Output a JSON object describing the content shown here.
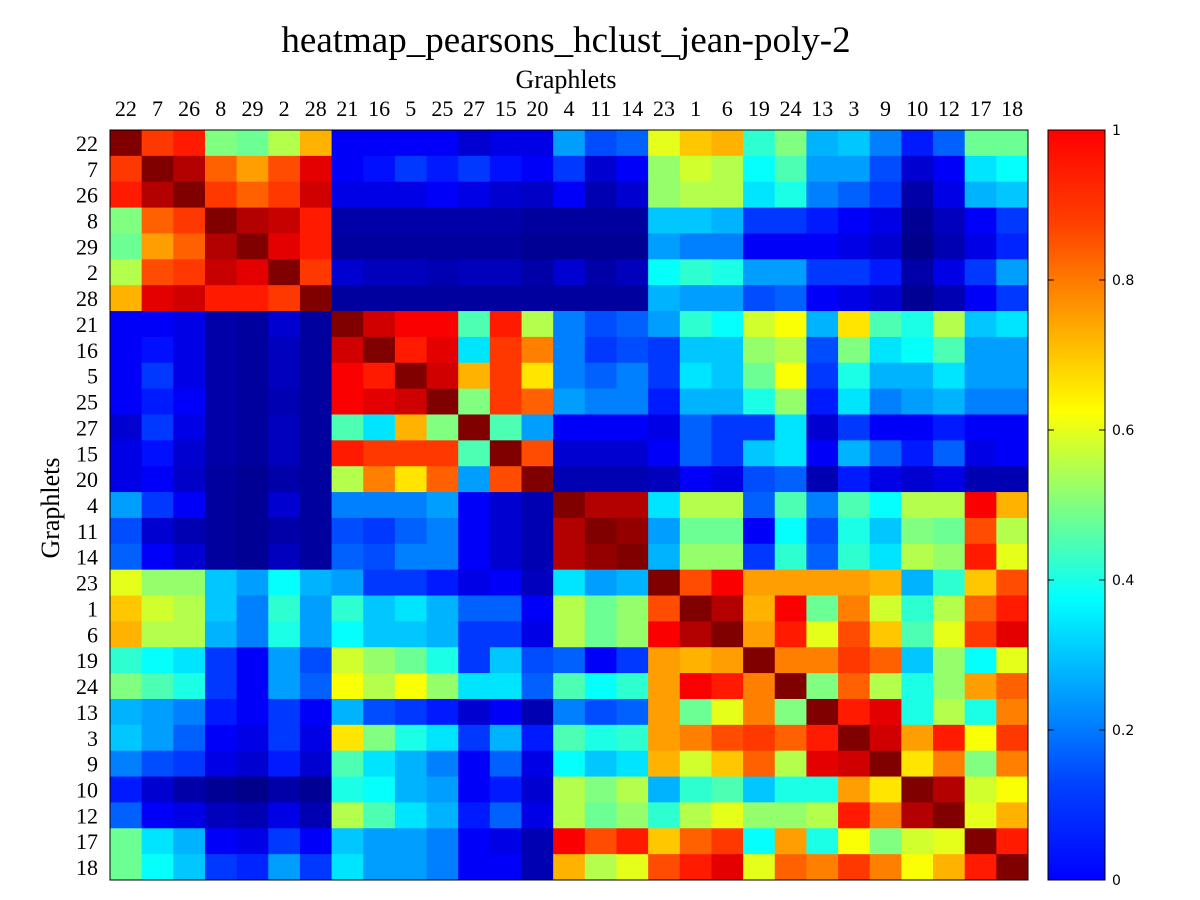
{
  "chart_data": {
    "type": "heatmap",
    "title": "heatmap_pearsons_hclust_jean-poly-2",
    "xlabel": "Graphlets",
    "ylabel": "Graphlets",
    "labels": [
      "22",
      "7",
      "26",
      "8",
      "29",
      "2",
      "28",
      "21",
      "16",
      "5",
      "25",
      "27",
      "15",
      "20",
      "4",
      "11",
      "14",
      "23",
      "1",
      "6",
      "19",
      "24",
      "13",
      "3",
      "9",
      "10",
      "12",
      "17",
      "18"
    ],
    "colorscale": "jet",
    "zlim": [
      0,
      1
    ],
    "colorbar_ticks": [
      "0",
      "0.2",
      "0.4",
      "0.6",
      "0.8",
      "1"
    ],
    "colorbar_tick_values": [
      0,
      0.2,
      0.4,
      0.6,
      0.8,
      1
    ],
    "values": [
      [
        1.0,
        0.82,
        0.85,
        0.5,
        0.48,
        0.55,
        0.7,
        0.12,
        0.12,
        0.12,
        0.12,
        0.08,
        0.1,
        0.1,
        0.28,
        0.2,
        0.22,
        0.6,
        0.68,
        0.7,
        0.42,
        0.5,
        0.3,
        0.32,
        0.25,
        0.15,
        0.22,
        0.48,
        0.48
      ],
      [
        0.82,
        1.0,
        0.95,
        0.78,
        0.72,
        0.8,
        0.9,
        0.12,
        0.14,
        0.18,
        0.15,
        0.18,
        0.14,
        0.12,
        0.18,
        0.08,
        0.12,
        0.52,
        0.58,
        0.55,
        0.38,
        0.45,
        0.28,
        0.28,
        0.2,
        0.08,
        0.12,
        0.35,
        0.38
      ],
      [
        0.85,
        0.95,
        1.0,
        0.82,
        0.78,
        0.82,
        0.92,
        0.1,
        0.1,
        0.1,
        0.12,
        0.1,
        0.08,
        0.07,
        0.12,
        0.05,
        0.08,
        0.52,
        0.55,
        0.55,
        0.35,
        0.4,
        0.25,
        0.22,
        0.18,
        0.04,
        0.1,
        0.3,
        0.32
      ],
      [
        0.5,
        0.78,
        0.82,
        1.0,
        0.95,
        0.93,
        0.85,
        0.04,
        0.04,
        0.04,
        0.04,
        0.04,
        0.04,
        0.03,
        0.03,
        0.03,
        0.03,
        0.32,
        0.32,
        0.3,
        0.18,
        0.18,
        0.15,
        0.12,
        0.1,
        0.02,
        0.06,
        0.12,
        0.18
      ],
      [
        0.48,
        0.72,
        0.78,
        0.95,
        1.0,
        0.9,
        0.85,
        0.03,
        0.03,
        0.03,
        0.03,
        0.03,
        0.03,
        0.02,
        0.02,
        0.02,
        0.02,
        0.28,
        0.25,
        0.25,
        0.12,
        0.12,
        0.12,
        0.1,
        0.08,
        0.01,
        0.05,
        0.1,
        0.16
      ],
      [
        0.55,
        0.8,
        0.82,
        0.93,
        0.9,
        1.0,
        0.82,
        0.08,
        0.06,
        0.06,
        0.05,
        0.06,
        0.06,
        0.04,
        0.08,
        0.04,
        0.06,
        0.38,
        0.42,
        0.4,
        0.28,
        0.28,
        0.18,
        0.18,
        0.15,
        0.04,
        0.1,
        0.18,
        0.28
      ],
      [
        0.7,
        0.9,
        0.92,
        0.85,
        0.85,
        0.82,
        1.0,
        0.03,
        0.03,
        0.03,
        0.03,
        0.03,
        0.03,
        0.03,
        0.03,
        0.03,
        0.03,
        0.3,
        0.28,
        0.28,
        0.2,
        0.22,
        0.12,
        0.1,
        0.08,
        0.02,
        0.05,
        0.12,
        0.18
      ],
      [
        0.12,
        0.12,
        0.1,
        0.04,
        0.03,
        0.08,
        0.03,
        1.0,
        0.92,
        0.88,
        0.88,
        0.45,
        0.85,
        0.55,
        0.25,
        0.2,
        0.22,
        0.28,
        0.42,
        0.38,
        0.58,
        0.62,
        0.3,
        0.65,
        0.45,
        0.4,
        0.55,
        0.32,
        0.35
      ],
      [
        0.12,
        0.14,
        0.1,
        0.04,
        0.03,
        0.06,
        0.03,
        0.92,
        1.0,
        0.85,
        0.9,
        0.35,
        0.82,
        0.75,
        0.25,
        0.18,
        0.2,
        0.18,
        0.32,
        0.32,
        0.52,
        0.55,
        0.2,
        0.5,
        0.35,
        0.38,
        0.45,
        0.28,
        0.28
      ],
      [
        0.12,
        0.18,
        0.1,
        0.04,
        0.03,
        0.06,
        0.03,
        0.88,
        0.85,
        1.0,
        0.92,
        0.7,
        0.82,
        0.65,
        0.25,
        0.22,
        0.25,
        0.18,
        0.35,
        0.32,
        0.48,
        0.62,
        0.18,
        0.4,
        0.3,
        0.3,
        0.35,
        0.28,
        0.28
      ],
      [
        0.12,
        0.15,
        0.12,
        0.04,
        0.03,
        0.05,
        0.03,
        0.88,
        0.9,
        0.92,
        1.0,
        0.5,
        0.82,
        0.78,
        0.28,
        0.25,
        0.25,
        0.15,
        0.3,
        0.3,
        0.4,
        0.52,
        0.15,
        0.35,
        0.25,
        0.28,
        0.3,
        0.25,
        0.25
      ],
      [
        0.08,
        0.18,
        0.1,
        0.04,
        0.03,
        0.06,
        0.03,
        0.45,
        0.35,
        0.7,
        0.5,
        1.0,
        0.45,
        0.28,
        0.12,
        0.12,
        0.12,
        0.1,
        0.22,
        0.18,
        0.18,
        0.35,
        0.08,
        0.18,
        0.12,
        0.12,
        0.15,
        0.12,
        0.12
      ],
      [
        0.1,
        0.14,
        0.08,
        0.04,
        0.03,
        0.06,
        0.03,
        0.85,
        0.82,
        0.82,
        0.82,
        0.45,
        1.0,
        0.8,
        0.08,
        0.08,
        0.08,
        0.12,
        0.22,
        0.18,
        0.32,
        0.35,
        0.12,
        0.3,
        0.22,
        0.15,
        0.22,
        0.1,
        0.12
      ],
      [
        0.1,
        0.12,
        0.07,
        0.03,
        0.02,
        0.04,
        0.03,
        0.55,
        0.75,
        0.65,
        0.78,
        0.28,
        0.8,
        1.0,
        0.05,
        0.05,
        0.05,
        0.06,
        0.12,
        0.1,
        0.2,
        0.22,
        0.05,
        0.15,
        0.1,
        0.08,
        0.1,
        0.05,
        0.05
      ],
      [
        0.28,
        0.18,
        0.12,
        0.03,
        0.02,
        0.08,
        0.03,
        0.25,
        0.25,
        0.25,
        0.28,
        0.12,
        0.08,
        0.05,
        1.0,
        0.95,
        0.95,
        0.35,
        0.55,
        0.55,
        0.22,
        0.45,
        0.25,
        0.45,
        0.38,
        0.55,
        0.55,
        0.88,
        0.7
      ],
      [
        0.2,
        0.08,
        0.05,
        0.03,
        0.02,
        0.04,
        0.03,
        0.2,
        0.18,
        0.22,
        0.25,
        0.12,
        0.08,
        0.05,
        0.95,
        1.0,
        0.98,
        0.28,
        0.48,
        0.48,
        0.12,
        0.38,
        0.2,
        0.4,
        0.32,
        0.5,
        0.48,
        0.8,
        0.55
      ],
      [
        0.22,
        0.12,
        0.08,
        0.03,
        0.02,
        0.06,
        0.03,
        0.22,
        0.2,
        0.25,
        0.25,
        0.12,
        0.08,
        0.05,
        0.95,
        0.98,
        1.0,
        0.3,
        0.52,
        0.52,
        0.18,
        0.42,
        0.22,
        0.42,
        0.35,
        0.55,
        0.52,
        0.85,
        0.6
      ],
      [
        0.6,
        0.52,
        0.52,
        0.32,
        0.28,
        0.38,
        0.3,
        0.28,
        0.18,
        0.18,
        0.15,
        0.1,
        0.12,
        0.06,
        0.35,
        0.28,
        0.3,
        1.0,
        0.8,
        0.88,
        0.72,
        0.72,
        0.72,
        0.72,
        0.7,
        0.3,
        0.42,
        0.68,
        0.8
      ],
      [
        0.68,
        0.58,
        0.55,
        0.32,
        0.25,
        0.42,
        0.28,
        0.42,
        0.32,
        0.35,
        0.3,
        0.22,
        0.22,
        0.12,
        0.55,
        0.48,
        0.52,
        0.8,
        1.0,
        0.95,
        0.7,
        0.88,
        0.48,
        0.75,
        0.58,
        0.42,
        0.55,
        0.78,
        0.85
      ],
      [
        0.7,
        0.55,
        0.55,
        0.3,
        0.25,
        0.4,
        0.28,
        0.38,
        0.32,
        0.32,
        0.3,
        0.18,
        0.18,
        0.1,
        0.55,
        0.48,
        0.52,
        0.88,
        0.95,
        1.0,
        0.72,
        0.85,
        0.6,
        0.8,
        0.68,
        0.45,
        0.6,
        0.82,
        0.9
      ],
      [
        0.42,
        0.38,
        0.35,
        0.18,
        0.12,
        0.28,
        0.2,
        0.58,
        0.52,
        0.48,
        0.4,
        0.18,
        0.32,
        0.2,
        0.22,
        0.12,
        0.18,
        0.72,
        0.7,
        0.72,
        1.0,
        0.75,
        0.75,
        0.82,
        0.78,
        0.32,
        0.52,
        0.38,
        0.6
      ],
      [
        0.5,
        0.45,
        0.4,
        0.18,
        0.12,
        0.28,
        0.22,
        0.62,
        0.55,
        0.62,
        0.52,
        0.35,
        0.35,
        0.22,
        0.45,
        0.38,
        0.42,
        0.72,
        0.88,
        0.85,
        0.75,
        1.0,
        0.5,
        0.78,
        0.55,
        0.4,
        0.52,
        0.72,
        0.78
      ],
      [
        0.3,
        0.28,
        0.25,
        0.15,
        0.12,
        0.18,
        0.12,
        0.3,
        0.2,
        0.18,
        0.15,
        0.08,
        0.12,
        0.05,
        0.25,
        0.2,
        0.22,
        0.72,
        0.48,
        0.6,
        0.75,
        0.5,
        1.0,
        0.85,
        0.9,
        0.4,
        0.55,
        0.4,
        0.75
      ],
      [
        0.32,
        0.28,
        0.22,
        0.12,
        0.1,
        0.18,
        0.1,
        0.65,
        0.5,
        0.4,
        0.35,
        0.18,
        0.3,
        0.15,
        0.45,
        0.4,
        0.42,
        0.72,
        0.75,
        0.8,
        0.82,
        0.78,
        0.85,
        1.0,
        0.92,
        0.72,
        0.85,
        0.62,
        0.82
      ],
      [
        0.25,
        0.2,
        0.18,
        0.1,
        0.08,
        0.15,
        0.08,
        0.45,
        0.35,
        0.3,
        0.25,
        0.12,
        0.22,
        0.1,
        0.38,
        0.32,
        0.35,
        0.7,
        0.58,
        0.68,
        0.78,
        0.55,
        0.9,
        0.92,
        1.0,
        0.65,
        0.75,
        0.5,
        0.75
      ],
      [
        0.15,
        0.08,
        0.04,
        0.02,
        0.01,
        0.04,
        0.02,
        0.4,
        0.38,
        0.3,
        0.28,
        0.12,
        0.15,
        0.08,
        0.55,
        0.5,
        0.55,
        0.3,
        0.42,
        0.45,
        0.32,
        0.4,
        0.4,
        0.72,
        0.65,
        1.0,
        0.95,
        0.58,
        0.62
      ],
      [
        0.22,
        0.12,
        0.1,
        0.06,
        0.05,
        0.1,
        0.05,
        0.55,
        0.45,
        0.35,
        0.3,
        0.15,
        0.22,
        0.1,
        0.55,
        0.48,
        0.52,
        0.42,
        0.55,
        0.6,
        0.52,
        0.52,
        0.55,
        0.85,
        0.75,
        0.95,
        1.0,
        0.6,
        0.7
      ],
      [
        0.48,
        0.35,
        0.3,
        0.12,
        0.1,
        0.18,
        0.12,
        0.32,
        0.28,
        0.28,
        0.25,
        0.12,
        0.1,
        0.05,
        0.88,
        0.8,
        0.85,
        0.68,
        0.78,
        0.82,
        0.38,
        0.72,
        0.4,
        0.62,
        0.5,
        0.58,
        0.6,
        1.0,
        0.85
      ],
      [
        0.48,
        0.38,
        0.32,
        0.18,
        0.16,
        0.28,
        0.18,
        0.35,
        0.28,
        0.28,
        0.25,
        0.12,
        0.12,
        0.05,
        0.7,
        0.55,
        0.6,
        0.8,
        0.85,
        0.9,
        0.6,
        0.78,
        0.75,
        0.82,
        0.75,
        0.62,
        0.7,
        0.85,
        1.0
      ]
    ]
  }
}
